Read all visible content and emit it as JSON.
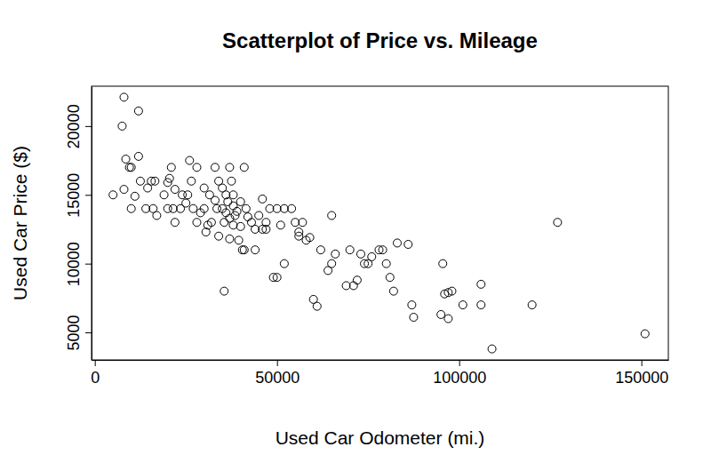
{
  "chart_data": {
    "type": "scatter",
    "title": "Scatterplot of Price vs. Mileage",
    "x_label": "Used Car Odometer (mi.)",
    "y_label": "Used Car Price ($)",
    "x": [
      8000,
      12000,
      7500,
      8500,
      10000,
      9500,
      12000,
      5000,
      8000,
      11000,
      12500,
      14000,
      10000,
      16000,
      17000,
      15500,
      16500,
      19000,
      20000,
      20500,
      21000,
      21500,
      22000,
      22000,
      23500,
      24000,
      25000,
      25500,
      26000,
      26500,
      27000,
      28000,
      28000,
      29000,
      30000,
      30500,
      31000,
      31500,
      32000,
      33000,
      33500,
      34000,
      34000,
      35000,
      35500,
      35500,
      36000,
      36500,
      37000,
      37000,
      37500,
      38000,
      38000,
      38000,
      39000,
      39500,
      40000,
      40000,
      40500,
      41000,
      41000,
      41500,
      42000,
      43000,
      44000,
      45000,
      46000,
      46000,
      47000,
      47000,
      48000,
      49000,
      50000,
      50000,
      51000,
      52000,
      52000,
      54000,
      55000,
      56000,
      56000,
      57000,
      58000,
      59000,
      60000,
      61000,
      62000,
      64000,
      65000,
      65000,
      66000,
      69000,
      70000,
      71000,
      72000,
      73000,
      74000,
      75000,
      76000,
      78000,
      79000,
      80000,
      81000,
      82000,
      83000,
      86000,
      87000,
      87500,
      95000,
      95500,
      96000,
      97000,
      97000,
      98000,
      101000,
      106000,
      106000,
      109000,
      120000,
      127000,
      151000,
      33000,
      35000,
      36000,
      38500,
      30000,
      20000,
      14500,
      44000,
      37000
    ],
    "values": [
      22100,
      21100,
      20000,
      17600,
      17000,
      17000,
      17800,
      15000,
      15400,
      14900,
      16000,
      14000,
      14000,
      14000,
      13500,
      16000,
      16000,
      15000,
      15900,
      16200,
      17000,
      14000,
      15400,
      13000,
      14000,
      15000,
      14400,
      15000,
      17500,
      16000,
      14000,
      17000,
      13000,
      13700,
      15500,
      12300,
      12800,
      15000,
      13000,
      17000,
      14000,
      16000,
      12000,
      14000,
      13000,
      8000,
      15000,
      14500,
      13300,
      17000,
      16000,
      15000,
      12800,
      14200,
      13800,
      11700,
      14500,
      12700,
      11000,
      11000,
      17000,
      14000,
      13400,
      13000,
      11000,
      13500,
      12500,
      14700,
      13000,
      12500,
      14000,
      9000,
      9000,
      14000,
      12800,
      14000,
      10000,
      14000,
      13000,
      12300,
      12000,
      13000,
      11700,
      11900,
      7400,
      6900,
      11000,
      9500,
      13500,
      10000,
      10700,
      8400,
      11000,
      8400,
      8800,
      10700,
      10000,
      10000,
      10500,
      11000,
      11000,
      10000,
      9000,
      8000,
      11500,
      11400,
      7000,
      6100,
      6300,
      10000,
      7800,
      6000,
      7900,
      8000,
      7000,
      8500,
      7000,
      3800,
      7000,
      13000,
      4900,
      14600,
      15500,
      13700,
      13500,
      14000,
      14000,
      15500,
      12500,
      11800
    ],
    "xlim": [
      -900,
      157400
    ],
    "ylim": [
      3000,
      22900
    ],
    "xticks": [
      0,
      50000,
      100000,
      150000
    ],
    "yticks": [
      5000,
      10000,
      15000,
      20000
    ],
    "color": "#000000",
    "marker": "open-circle",
    "grid": false
  }
}
